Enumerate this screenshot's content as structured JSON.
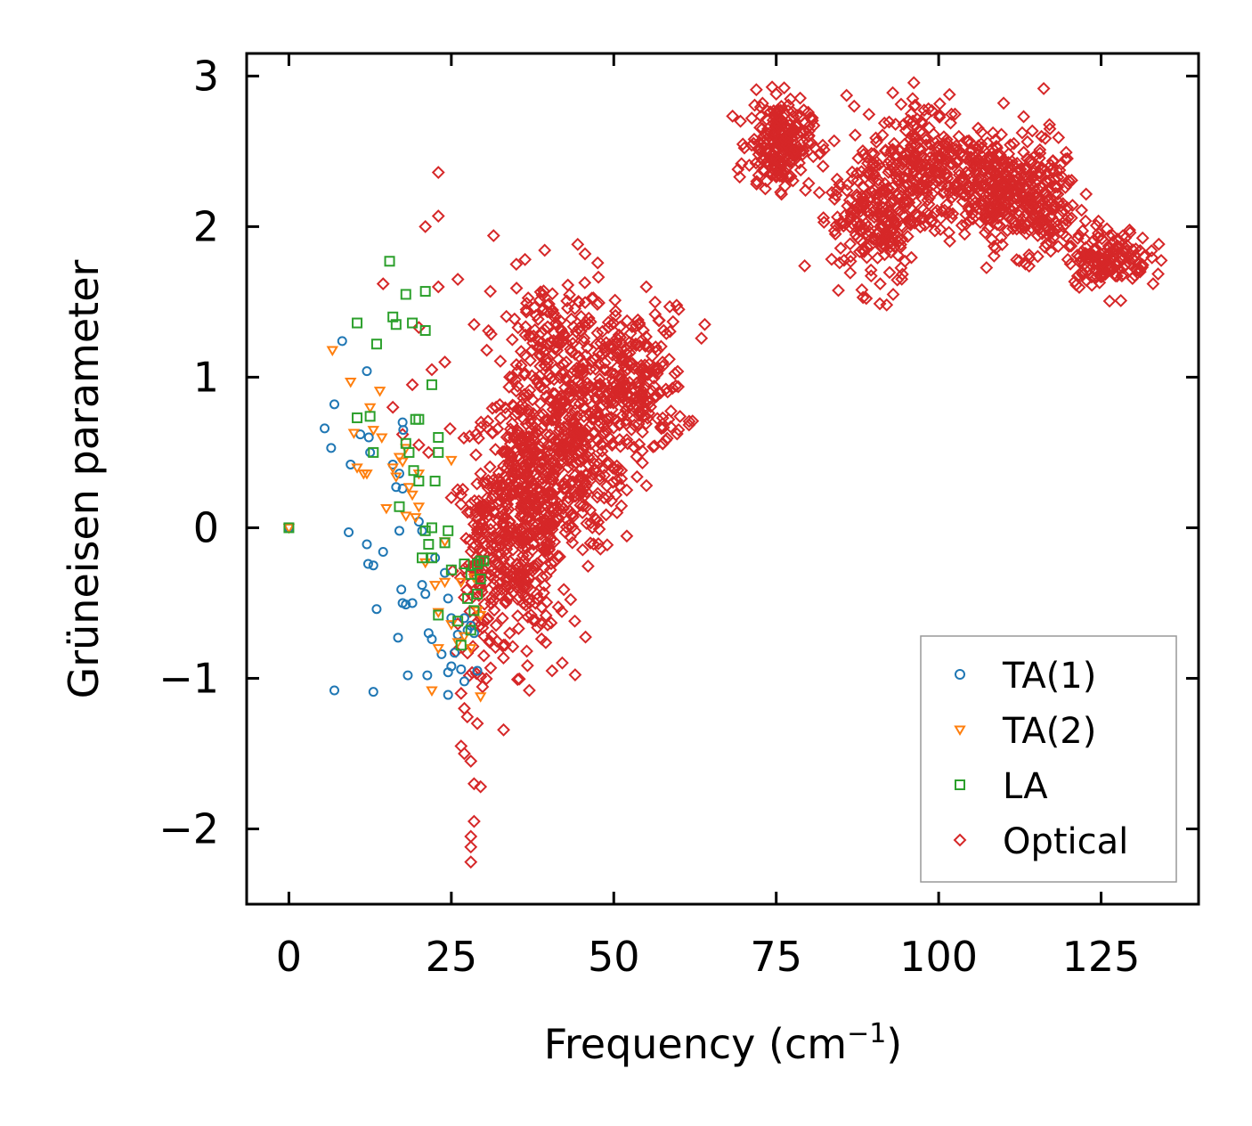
{
  "chart_data": {
    "type": "scatter",
    "title": "",
    "xlabel": "Frequency (cm",
    "xlabel_sup": "−1",
    "xlabel_close": ")",
    "ylabel": "Grüneisen parameter",
    "xlim": [
      -6.5,
      140
    ],
    "ylim": [
      -2.5,
      3.15
    ],
    "xticks": [
      0,
      25,
      50,
      75,
      100,
      125
    ],
    "xtick_labels": [
      "0",
      "25",
      "50",
      "75",
      "100",
      "125"
    ],
    "yticks": [
      -2,
      -1,
      0,
      1,
      2,
      3
    ],
    "ytick_labels": [
      "−2",
      "−1",
      "0",
      "1",
      "2",
      "3"
    ],
    "grid": false,
    "legend_position": "bottom-right",
    "series": [
      {
        "name": "TA(1)",
        "marker": "circle",
        "color": "#1f77b4",
        "points": [
          [
            0,
            0
          ],
          [
            5.5,
            0.66
          ],
          [
            6.5,
            0.53
          ],
          [
            7,
            0.82
          ],
          [
            8.2,
            1.24
          ],
          [
            9.5,
            0.42
          ],
          [
            9.2,
            -0.03
          ],
          [
            11,
            0.62
          ],
          [
            12,
            1.04
          ],
          [
            12.3,
            0.6
          ],
          [
            12.5,
            0.5
          ],
          [
            12,
            -0.11
          ],
          [
            12.2,
            -0.24
          ],
          [
            13,
            -0.25
          ],
          [
            13.5,
            -0.54
          ],
          [
            14.5,
            -0.16
          ],
          [
            16,
            0.42
          ],
          [
            16.5,
            0.27
          ],
          [
            17,
            0.36
          ],
          [
            17.5,
            0.7
          ],
          [
            17.6,
            0.65
          ],
          [
            17.5,
            0.26
          ],
          [
            17,
            -0.02
          ],
          [
            17.3,
            -0.41
          ],
          [
            17.5,
            -0.5
          ],
          [
            18,
            -0.51
          ],
          [
            19,
            -0.5
          ],
          [
            16.8,
            -0.73
          ],
          [
            18.3,
            -0.98
          ],
          [
            20,
            0.04
          ],
          [
            20.5,
            -0.02
          ],
          [
            20.5,
            -0.38
          ],
          [
            21,
            -0.44
          ],
          [
            21.3,
            -0.98
          ],
          [
            21.5,
            -0.7
          ],
          [
            22,
            -0.74
          ],
          [
            22.5,
            -0.2
          ],
          [
            23.5,
            -0.84
          ],
          [
            24,
            -0.3
          ],
          [
            24.5,
            -0.47
          ],
          [
            24.5,
            -0.96
          ],
          [
            25,
            -0.6
          ],
          [
            25,
            -0.92
          ],
          [
            25.5,
            -0.83
          ],
          [
            26,
            -0.71
          ],
          [
            26.5,
            -0.94
          ],
          [
            27,
            -0.6
          ],
          [
            27.5,
            -0.68
          ],
          [
            28,
            -0.65
          ],
          [
            28.5,
            -0.7
          ],
          [
            29,
            -0.95
          ],
          [
            24.5,
            -1.11
          ],
          [
            27,
            -1.02
          ],
          [
            7,
            -1.08
          ],
          [
            13,
            -1.09
          ]
        ]
      },
      {
        "name": "TA(2)",
        "marker": "triangle-down",
        "color": "#ff7f0e",
        "points": [
          [
            0,
            0
          ],
          [
            6.7,
            1.18
          ],
          [
            9.5,
            0.97
          ],
          [
            10,
            0.63
          ],
          [
            10.5,
            0.4
          ],
          [
            11.5,
            0.36
          ],
          [
            12,
            0.36
          ],
          [
            12.5,
            0.8
          ],
          [
            13,
            0.65
          ],
          [
            14,
            0.91
          ],
          [
            14.3,
            0.6
          ],
          [
            15,
            0.13
          ],
          [
            16.5,
            0.34
          ],
          [
            17,
            0.47
          ],
          [
            17.5,
            0.44
          ],
          [
            18,
            0.53
          ],
          [
            18.5,
            0.27
          ],
          [
            19,
            0.22
          ],
          [
            19.5,
            0.07
          ],
          [
            20,
            0.14
          ],
          [
            21,
            -0.23
          ],
          [
            22,
            -1.08
          ],
          [
            23,
            -0.56
          ],
          [
            24,
            -0.36
          ],
          [
            25,
            0.45
          ],
          [
            25,
            -0.64
          ],
          [
            26,
            -0.76
          ],
          [
            27,
            -0.72
          ],
          [
            28,
            -0.8
          ],
          [
            29,
            -0.55
          ],
          [
            29.5,
            -0.58
          ],
          [
            29.5,
            -1.12
          ],
          [
            22.5,
            -0.38
          ],
          [
            20,
            0.36
          ],
          [
            18,
            0.08
          ],
          [
            16,
            0.4
          ],
          [
            24,
            -0.09
          ],
          [
            26.5,
            -0.36
          ],
          [
            28.5,
            -0.33
          ],
          [
            23,
            -0.8
          ]
        ]
      },
      {
        "name": "LA",
        "marker": "square",
        "color": "#2ca02c",
        "points": [
          [
            0,
            0
          ],
          [
            10.5,
            1.36
          ],
          [
            10.5,
            0.73
          ],
          [
            12.5,
            0.74
          ],
          [
            13.5,
            1.22
          ],
          [
            13,
            0.5
          ],
          [
            15.5,
            1.77
          ],
          [
            16,
            1.4
          ],
          [
            16.5,
            1.35
          ],
          [
            17,
            0.14
          ],
          [
            18,
            1.55
          ],
          [
            18,
            0.56
          ],
          [
            18.5,
            0.5
          ],
          [
            19,
            1.36
          ],
          [
            19.2,
            0.38
          ],
          [
            19.5,
            0.72
          ],
          [
            20,
            0.72
          ],
          [
            20,
            0.31
          ],
          [
            20.5,
            -0.2
          ],
          [
            21,
            1.57
          ],
          [
            21,
            1.31
          ],
          [
            21,
            -0.02
          ],
          [
            21.5,
            -0.11
          ],
          [
            22,
            0.95
          ],
          [
            22.5,
            0.31
          ],
          [
            22,
            -0.2
          ],
          [
            22,
            0
          ],
          [
            23,
            0.6
          ],
          [
            23,
            0.5
          ],
          [
            24,
            -0.1
          ],
          [
            23,
            -0.58
          ],
          [
            24.5,
            -0.02
          ],
          [
            25,
            -0.28
          ],
          [
            26,
            -0.62
          ],
          [
            27,
            -0.24
          ],
          [
            27.5,
            -0.47
          ],
          [
            28,
            -0.31
          ],
          [
            29,
            -0.24
          ],
          [
            29.5,
            -0.22
          ],
          [
            30,
            -0.22
          ],
          [
            29.5,
            -0.34
          ],
          [
            29,
            -0.44
          ],
          [
            28.5,
            -0.55
          ],
          [
            26.5,
            -0.78
          ],
          [
            28,
            -0.68
          ]
        ]
      },
      {
        "name": "Optical",
        "marker": "diamond",
        "color": "#d62728",
        "blobs": [
          {
            "cx": 36.5,
            "cy": 0.15,
            "sx": 4.2,
            "sy": 0.55,
            "n": 520
          },
          {
            "cx": 44,
            "cy": 0.55,
            "sx": 4.2,
            "sy": 0.45,
            "n": 300
          },
          {
            "cx": 53,
            "cy": 0.95,
            "sx": 5,
            "sy": 0.32,
            "n": 260
          },
          {
            "cx": 30,
            "cy": -0.2,
            "sx": 2.5,
            "sy": 0.45,
            "n": 140
          },
          {
            "cx": 41,
            "cy": 1.3,
            "sx": 5,
            "sy": 0.25,
            "n": 110
          },
          {
            "cx": 75.5,
            "cy": 2.55,
            "sx": 3,
            "sy": 0.18,
            "n": 220
          },
          {
            "cx": 90,
            "cy": 2.1,
            "sx": 4,
            "sy": 0.3,
            "n": 220
          },
          {
            "cx": 98,
            "cy": 2.4,
            "sx": 4.5,
            "sy": 0.28,
            "n": 240
          },
          {
            "cx": 108,
            "cy": 2.25,
            "sx": 4,
            "sy": 0.22,
            "n": 220
          },
          {
            "cx": 115,
            "cy": 2.2,
            "sx": 4,
            "sy": 0.25,
            "n": 200
          },
          {
            "cx": 126,
            "cy": 1.8,
            "sx": 4,
            "sy": 0.12,
            "n": 150
          }
        ],
        "points": [
          [
            23,
            2.36
          ],
          [
            23,
            2.07
          ],
          [
            21,
            2
          ],
          [
            31.5,
            1.94
          ],
          [
            35,
            1.75
          ],
          [
            31,
            1.57
          ],
          [
            14.5,
            1.62
          ],
          [
            23,
            1.6
          ],
          [
            26,
            1.65
          ],
          [
            28.5,
            1.35
          ],
          [
            20,
            1.33
          ],
          [
            24,
            1.1
          ],
          [
            22,
            1.05
          ],
          [
            19,
            0.95
          ],
          [
            16,
            0.8
          ],
          [
            17.5,
            0.62
          ],
          [
            20,
            0.55
          ],
          [
            21.5,
            0.5
          ],
          [
            25,
            0.2
          ],
          [
            26.5,
            -1.1
          ],
          [
            27,
            -1.2
          ],
          [
            26.5,
            -1.45
          ],
          [
            27,
            -1.5
          ],
          [
            28,
            -1.55
          ],
          [
            28.5,
            -1.7
          ],
          [
            29,
            -1.3
          ],
          [
            28.5,
            -1.95
          ],
          [
            28,
            -2.05
          ],
          [
            28,
            -2.12
          ],
          [
            28,
            -2.22
          ],
          [
            29.5,
            -1.72
          ],
          [
            37,
            -1.08
          ],
          [
            40.5,
            -0.95
          ],
          [
            44,
            -0.62
          ],
          [
            30,
            -0.85
          ],
          [
            30,
            -0.62
          ],
          [
            50.5,
            0.1
          ],
          [
            52,
            0.25
          ],
          [
            58,
            0.58
          ],
          [
            64,
            1.35
          ],
          [
            60,
            1.45
          ],
          [
            55,
            1.6
          ],
          [
            75,
            2.88
          ],
          [
            92,
            1.48
          ],
          [
            91,
            1.62
          ],
          [
            93,
            1.55
          ],
          [
            105,
            2.5
          ],
          [
            110,
            2.82
          ],
          [
            133,
            1.62
          ],
          [
            131,
            1.7
          ],
          [
            104,
            1.95
          ],
          [
            112,
            1.78
          ],
          [
            69.5,
            2.7
          ],
          [
            72,
            2.3
          ],
          [
            87,
            2.8
          ],
          [
            96,
            2.85
          ]
        ]
      }
    ]
  }
}
